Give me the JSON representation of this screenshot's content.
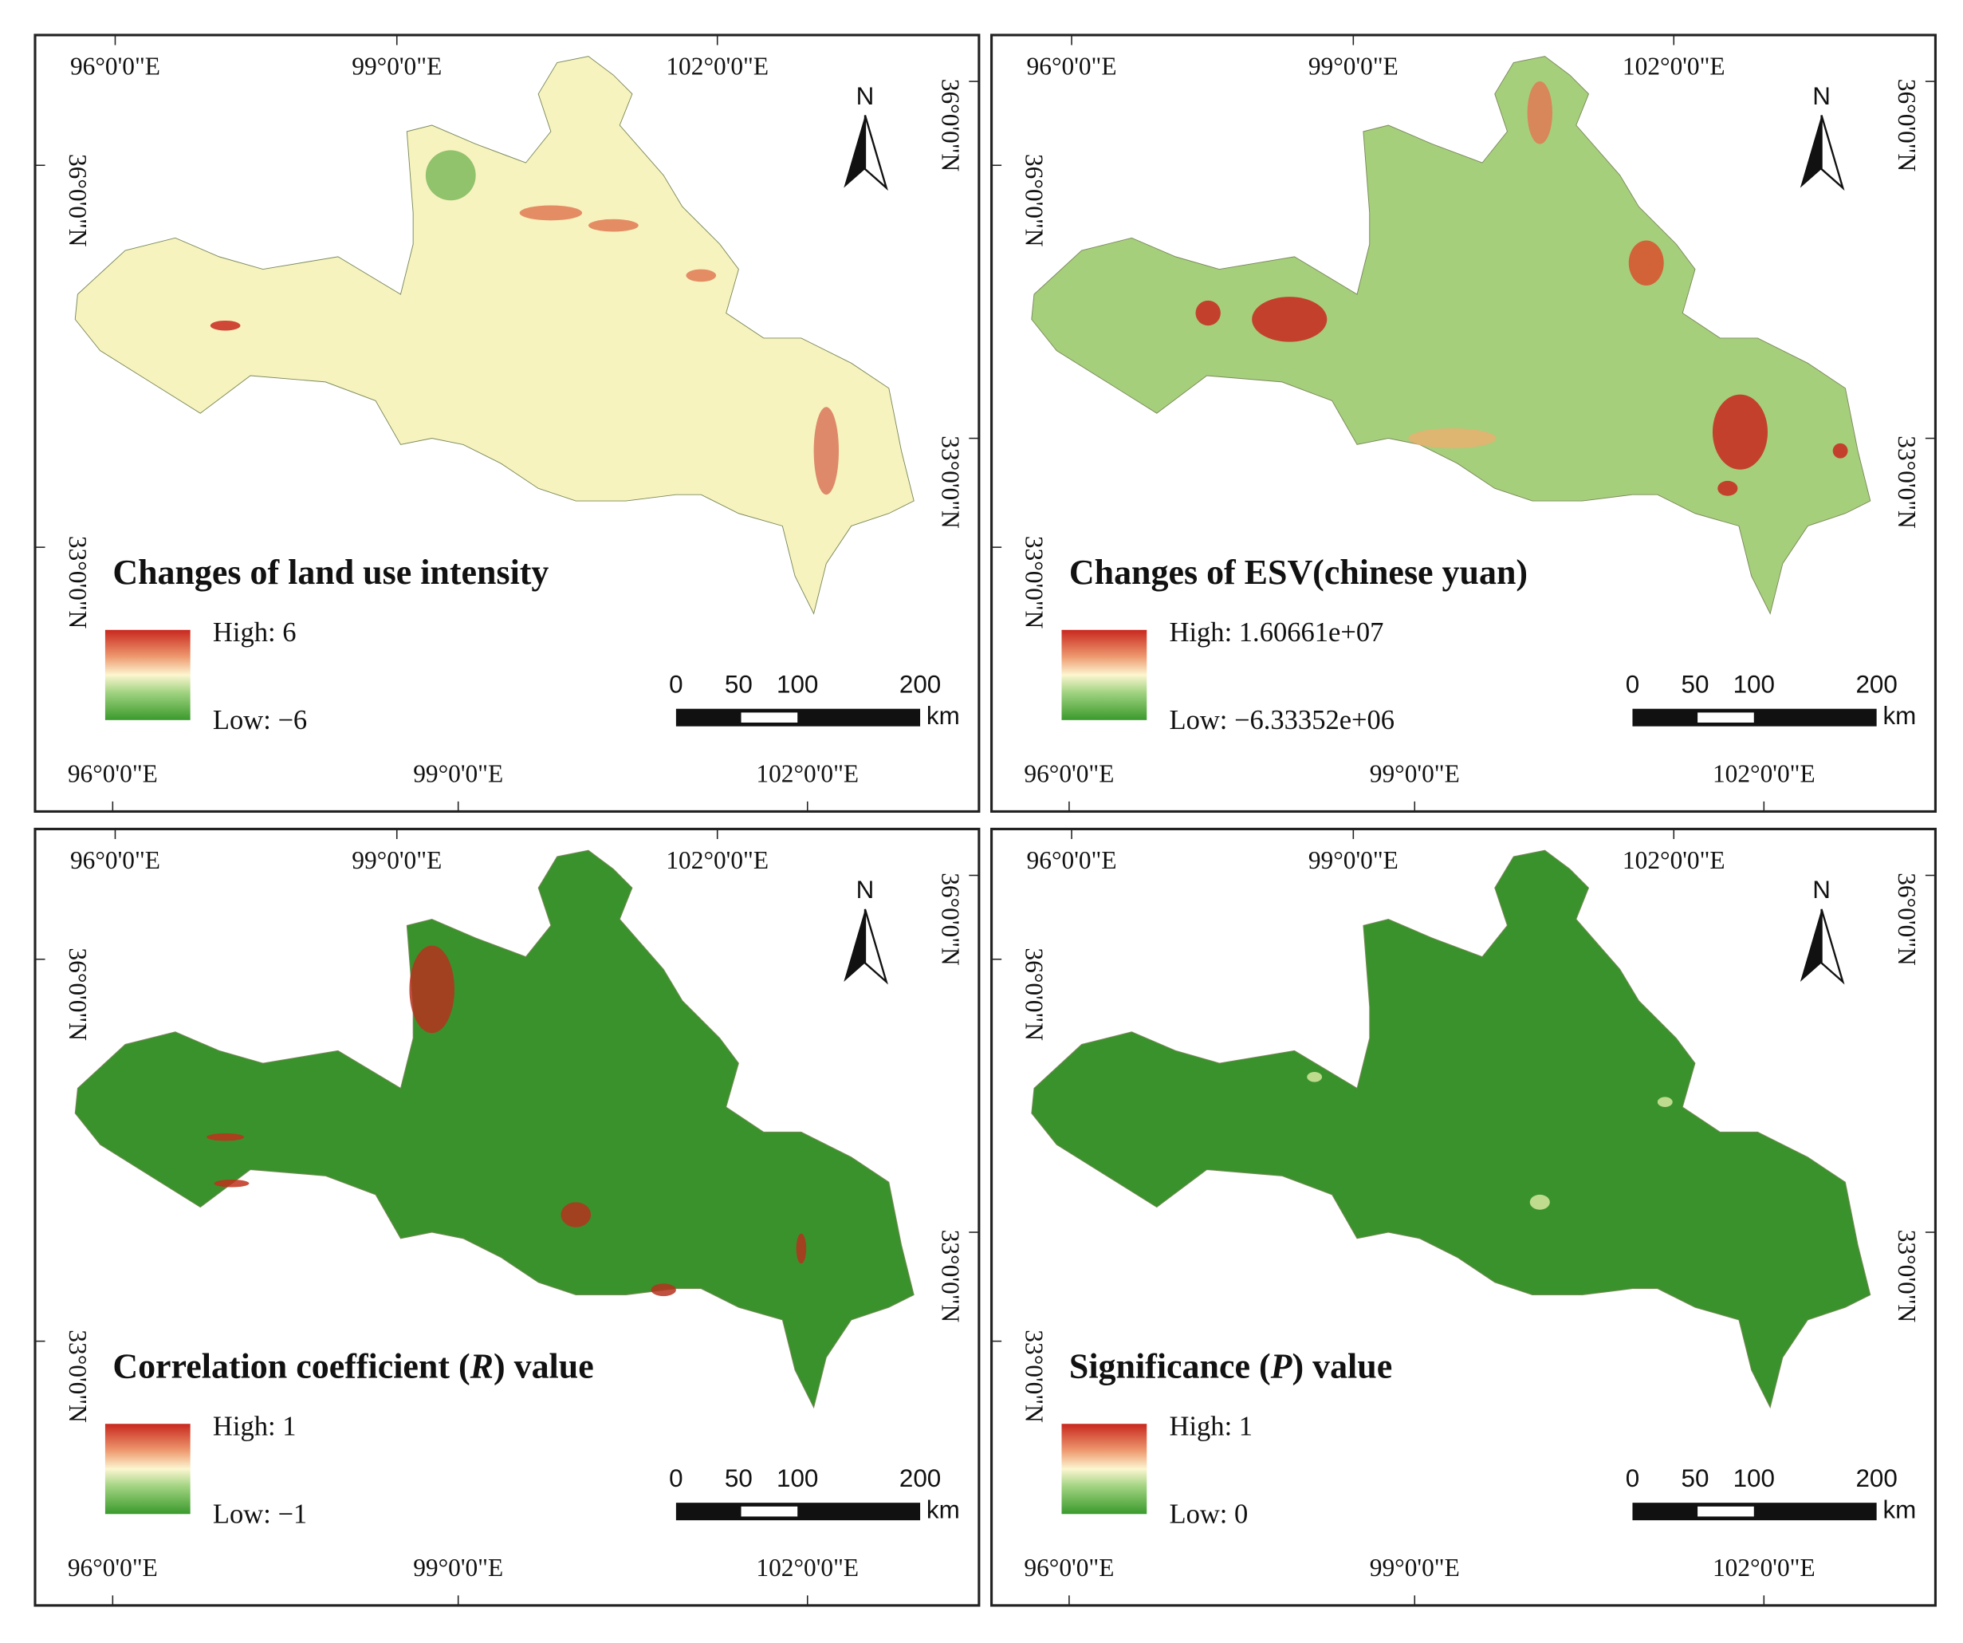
{
  "panels": [
    {
      "title": [
        "Changes of land use intensity"
      ],
      "legend": {
        "high": "High: 6",
        "low": "Low: −6"
      }
    },
    {
      "title": [
        "Changes of ESV(chinese yuan)"
      ],
      "legend": {
        "high": "High: 1.60661e+07",
        "low": "Low: −6.33352e+06"
      }
    },
    {
      "title": [
        "Correlation coefficient (",
        "R",
        ") value"
      ],
      "legend": {
        "high": "High: 1",
        "low": "Low: −1"
      }
    },
    {
      "title": [
        "Significance (",
        "P",
        ") value"
      ],
      "legend": {
        "high": "High: 1",
        "low": "Low: 0"
      }
    }
  ],
  "coordinates": {
    "top": [
      "96°0'0\"E",
      "99°0'0\"E",
      "102°0'0\"E"
    ],
    "bottom": [
      "96°0'0\"E",
      "99°0'0\"E",
      "102°0'0\"E"
    ],
    "left": [
      "36°0'0\"N",
      "33°0'0\"N"
    ],
    "right": [
      "36°0'0\"N",
      "33°0'0\"N"
    ]
  },
  "scale": {
    "labels": [
      "0",
      "50",
      "100",
      "200"
    ],
    "unit": "km"
  },
  "north": "N"
}
